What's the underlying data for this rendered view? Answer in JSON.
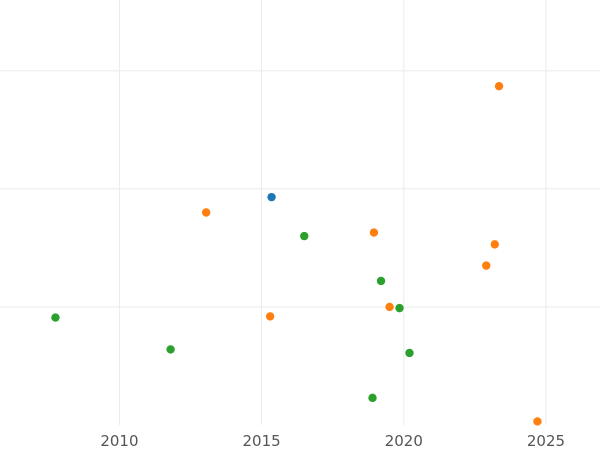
{
  "chart_data": {
    "type": "scatter",
    "title": "",
    "xlabel": "",
    "ylabel": "",
    "xlim": [
      2005.8,
      2026.9
    ],
    "ylim": [
      0.5,
      4.1
    ],
    "x_ticks": [
      2010,
      2015,
      2020,
      2025
    ],
    "x_tick_labels": [
      "2010",
      "2015",
      "2020",
      "2025"
    ],
    "y_grid": [
      1.5,
      2.5,
      3.5
    ],
    "grid": true,
    "legend": "none",
    "series": [
      {
        "color": "#1f77b4",
        "points": [
          {
            "x": 2015.35,
            "y": 2.43
          }
        ]
      },
      {
        "color": "#ff7f0e",
        "points": [
          {
            "x": 2013.05,
            "y": 2.3
          },
          {
            "x": 2015.3,
            "y": 1.42
          },
          {
            "x": 2018.95,
            "y": 2.13
          },
          {
            "x": 2019.5,
            "y": 1.5
          },
          {
            "x": 2022.9,
            "y": 1.85
          },
          {
            "x": 2023.2,
            "y": 2.03
          },
          {
            "x": 2023.35,
            "y": 3.37
          },
          {
            "x": 2024.7,
            "y": 0.53
          }
        ]
      },
      {
        "color": "#2ca02c",
        "points": [
          {
            "x": 2007.75,
            "y": 1.41
          },
          {
            "x": 2011.8,
            "y": 1.14
          },
          {
            "x": 2016.5,
            "y": 2.1
          },
          {
            "x": 2018.9,
            "y": 0.73
          },
          {
            "x": 2019.2,
            "y": 1.72
          },
          {
            "x": 2019.85,
            "y": 1.49
          },
          {
            "x": 2020.2,
            "y": 1.11
          }
        ]
      }
    ]
  }
}
